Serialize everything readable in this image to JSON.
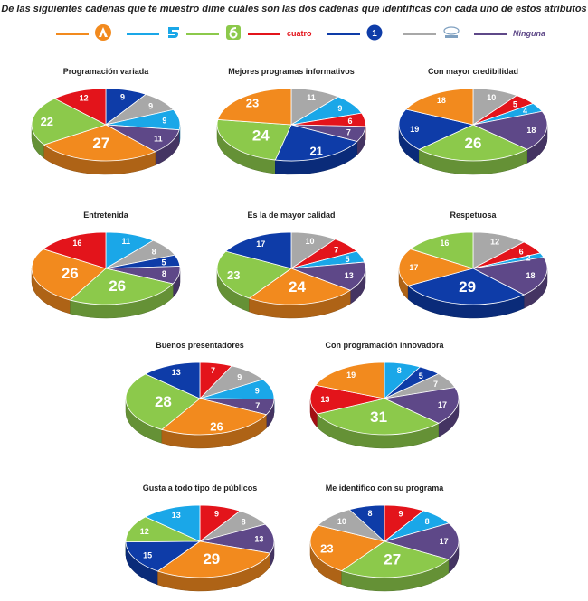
{
  "title": "De las siguientes cadenas que te muestro dime cuáles son las dos cadenas que identificas con cada uno de estos atributos",
  "legend": [
    {
      "key": "antena3",
      "color": "#F28A1E",
      "icon": "antena3-logo-icon"
    },
    {
      "key": "telecinco",
      "color": "#1AA7E8",
      "icon": "telecinco-logo-icon"
    },
    {
      "key": "lasexta",
      "color": "#8CC94B",
      "icon": "lasexta-logo-icon"
    },
    {
      "key": "cuatro",
      "color": "#E3141B",
      "label": "cuatro",
      "icon": "cuatro-logo-icon"
    },
    {
      "key": "la1",
      "color": "#0E3CA8",
      "label": "1",
      "icon": "la1-logo-icon"
    },
    {
      "key": "local",
      "color": "#A8A8A8",
      "icon": "local-tv-logo-icon"
    },
    {
      "key": "ninguna",
      "color": "#5E4888",
      "label": "Ninguna",
      "icon": "ninguna-legend-icon"
    }
  ],
  "chart_data": [
    {
      "type": "pie",
      "title": "Programación variada",
      "slices": [
        {
          "key": "la1",
          "value": 9
        },
        {
          "key": "local",
          "value": 9
        },
        {
          "key": "telecinco",
          "value": 9
        },
        {
          "key": "ninguna",
          "value": 11
        },
        {
          "key": "antena3",
          "value": 27
        },
        {
          "key": "lasexta",
          "value": 22
        },
        {
          "key": "cuatro",
          "value": 12
        }
      ]
    },
    {
      "type": "pie",
      "title": "Mejores programas informativos",
      "slices": [
        {
          "key": "local",
          "value": 11
        },
        {
          "key": "telecinco",
          "value": 9
        },
        {
          "key": "cuatro",
          "value": 6
        },
        {
          "key": "ninguna",
          "value": 7
        },
        {
          "key": "la1",
          "value": 21
        },
        {
          "key": "lasexta",
          "value": 24
        },
        {
          "key": "antena3",
          "value": 23
        }
      ]
    },
    {
      "type": "pie",
      "title": "Con mayor credibilidad",
      "slices": [
        {
          "key": "local",
          "value": 10
        },
        {
          "key": "cuatro",
          "value": 5
        },
        {
          "key": "telecinco",
          "value": 4
        },
        {
          "key": "ninguna",
          "value": 18
        },
        {
          "key": "lasexta",
          "value": 26
        },
        {
          "key": "la1",
          "value": 19
        },
        {
          "key": "antena3",
          "value": 18
        }
      ]
    },
    {
      "type": "pie",
      "title": "Entretenida",
      "slices": [
        {
          "key": "telecinco",
          "value": 11
        },
        {
          "key": "local",
          "value": 8
        },
        {
          "key": "la1",
          "value": 5
        },
        {
          "key": "ninguna",
          "value": 8
        },
        {
          "key": "lasexta",
          "value": 26
        },
        {
          "key": "antena3",
          "value": 26
        },
        {
          "key": "cuatro",
          "value": 16
        }
      ]
    },
    {
      "type": "pie",
      "title": "Es la de mayor calidad",
      "slices": [
        {
          "key": "local",
          "value": 10
        },
        {
          "key": "cuatro",
          "value": 7
        },
        {
          "key": "telecinco",
          "value": 5
        },
        {
          "key": "ninguna",
          "value": 13
        },
        {
          "key": "antena3",
          "value": 24
        },
        {
          "key": "lasexta",
          "value": 23
        },
        {
          "key": "la1",
          "value": 17
        }
      ]
    },
    {
      "type": "pie",
      "title": "Respetuosa",
      "slices": [
        {
          "key": "local",
          "value": 12
        },
        {
          "key": "cuatro",
          "value": 6
        },
        {
          "key": "telecinco",
          "value": 2
        },
        {
          "key": "ninguna",
          "value": 18
        },
        {
          "key": "la1",
          "value": 29
        },
        {
          "key": "antena3",
          "value": 17
        },
        {
          "key": "lasexta",
          "value": 16
        }
      ]
    },
    {
      "type": "pie",
      "title": "Buenos presentadores",
      "slices": [
        {
          "key": "cuatro",
          "value": 7
        },
        {
          "key": "local",
          "value": 9
        },
        {
          "key": "telecinco",
          "value": 9
        },
        {
          "key": "ninguna",
          "value": 7
        },
        {
          "key": "antena3",
          "value": 26
        },
        {
          "key": "lasexta",
          "value": 28
        },
        {
          "key": "la1",
          "value": 13
        }
      ]
    },
    {
      "type": "pie",
      "title": "Con programación innovadora",
      "slices": [
        {
          "key": "telecinco",
          "value": 8
        },
        {
          "key": "la1",
          "value": 5
        },
        {
          "key": "local",
          "value": 7
        },
        {
          "key": "ninguna",
          "value": 17
        },
        {
          "key": "lasexta",
          "value": 31
        },
        {
          "key": "cuatro",
          "value": 13
        },
        {
          "key": "antena3",
          "value": 19
        }
      ]
    },
    {
      "type": "pie",
      "title": "Gusta a todo tipo de públicos",
      "slices": [
        {
          "key": "cuatro",
          "value": 9
        },
        {
          "key": "local",
          "value": 8
        },
        {
          "key": "ninguna",
          "value": 13
        },
        {
          "key": "antena3",
          "value": 29
        },
        {
          "key": "la1",
          "value": 15
        },
        {
          "key": "lasexta",
          "value": 12
        },
        {
          "key": "telecinco",
          "value": 13
        }
      ]
    },
    {
      "type": "pie",
      "title": "Me identifico con su programa",
      "slices": [
        {
          "key": "cuatro",
          "value": 9
        },
        {
          "key": "telecinco",
          "value": 8
        },
        {
          "key": "ninguna",
          "value": 17
        },
        {
          "key": "lasexta",
          "value": 27
        },
        {
          "key": "antena3",
          "value": 23
        },
        {
          "key": "local",
          "value": 10
        },
        {
          "key": "la1",
          "value": 8
        }
      ]
    }
  ]
}
